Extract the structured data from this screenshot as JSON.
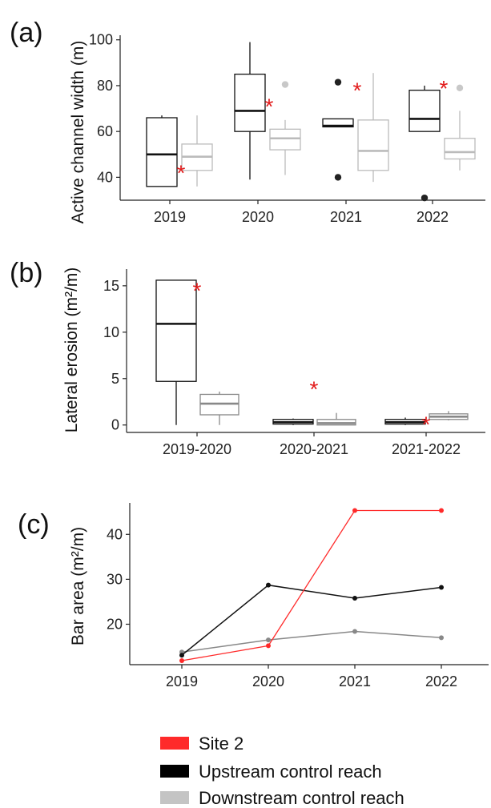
{
  "panels": {
    "a": "(a)",
    "b": "(b)",
    "c": "(c)"
  },
  "colors": {
    "site2": "#ff2a2a",
    "upstream": "#111111",
    "downstream": "#bbbbbb",
    "downstream_line": "#888888",
    "marker": "#e21b1b"
  },
  "chart_data": [
    {
      "type": "box",
      "panel": "(a)",
      "ylabel": "Active channel width (m)",
      "xlabel": "",
      "categories": [
        "2019",
        "2020",
        "2021",
        "2022"
      ],
      "ylim": [
        30,
        102
      ],
      "yticks": [
        40,
        60,
        80,
        100
      ],
      "series": [
        {
          "name": "Upstream control reach",
          "boxes": [
            {
              "whisker_low": 36,
              "q1": 36,
              "median": 50,
              "q3": 66,
              "whisker_high": 67,
              "outliers": []
            },
            {
              "whisker_low": 39,
              "q1": 60,
              "median": 69,
              "q3": 85,
              "whisker_high": 99,
              "outliers": []
            },
            {
              "whisker_low": 62,
              "q1": 62,
              "median": 62.5,
              "q3": 65.5,
              "whisker_high": 65.5,
              "outliers": [
                81.5,
                40
              ]
            },
            {
              "whisker_low": 60,
              "q1": 60,
              "median": 65.5,
              "q3": 78,
              "whisker_high": 80,
              "outliers": [
                31
              ]
            }
          ]
        },
        {
          "name": "Downstream control reach",
          "boxes": [
            {
              "whisker_low": 36,
              "q1": 43,
              "median": 49,
              "q3": 54.5,
              "whisker_high": 67,
              "outliers": []
            },
            {
              "whisker_low": 41,
              "q1": 52,
              "median": 57,
              "q3": 61,
              "whisker_high": 65,
              "outliers": [
                80.5
              ]
            },
            {
              "whisker_low": 38,
              "q1": 43,
              "median": 51.5,
              "q3": 65,
              "whisker_high": 85.5,
              "outliers": []
            },
            {
              "whisker_low": 43,
              "q1": 48,
              "median": 51,
              "q3": 57,
              "whisker_high": 69,
              "outliers": [
                79
              ]
            }
          ]
        }
      ],
      "site2_markers": [
        42,
        71,
        78,
        79
      ]
    },
    {
      "type": "box",
      "panel": "(b)",
      "ylabel": "Lateral erosion (m²/m)",
      "xlabel": "",
      "categories": [
        "2019-2020",
        "2020-2021",
        "2021-2022"
      ],
      "ylim": [
        -0.8,
        16.8
      ],
      "yticks": [
        0,
        5,
        10,
        15
      ],
      "series": [
        {
          "name": "Upstream control reach",
          "boxes": [
            {
              "whisker_low": 0,
              "q1": 4.7,
              "median": 10.9,
              "q3": 15.6,
              "whisker_high": 15.6,
              "outliers": []
            },
            {
              "whisker_low": 0,
              "q1": 0.1,
              "median": 0.3,
              "q3": 0.6,
              "whisker_high": 0.7,
              "outliers": []
            },
            {
              "whisker_low": 0,
              "q1": 0.1,
              "median": 0.3,
              "q3": 0.6,
              "whisker_high": 0.8,
              "outliers": []
            }
          ]
        },
        {
          "name": "Downstream control reach",
          "boxes": [
            {
              "whisker_low": 0,
              "q1": 1.1,
              "median": 2.3,
              "q3": 3.3,
              "whisker_high": 3.6,
              "outliers": []
            },
            {
              "whisker_low": 0,
              "q1": 0.0,
              "median": 0.2,
              "q3": 0.6,
              "whisker_high": 1.3,
              "outliers": []
            },
            {
              "whisker_low": 0.5,
              "q1": 0.6,
              "median": 0.9,
              "q3": 1.2,
              "whisker_high": 1.5,
              "outliers": []
            }
          ]
        }
      ],
      "site2_markers": [
        14.5,
        3.9,
        0.1
      ]
    },
    {
      "type": "line",
      "panel": "(c)",
      "ylabel": "Bar area (m²/m)",
      "xlabel": "",
      "x": [
        "2019",
        "2020",
        "2021",
        "2022"
      ],
      "ylim": [
        11,
        47
      ],
      "yticks": [
        20,
        30,
        40
      ],
      "series": [
        {
          "name": "Site 2",
          "values": [
            11.9,
            15.2,
            45.3,
            45.3
          ]
        },
        {
          "name": "Upstream control reach",
          "values": [
            13.1,
            28.7,
            25.8,
            28.2
          ]
        },
        {
          "name": "Downstream control reach",
          "values": [
            13.8,
            16.5,
            18.4,
            17.0
          ]
        }
      ]
    }
  ],
  "legend": {
    "items": [
      {
        "label": "Site 2",
        "color": "#ff2a2a"
      },
      {
        "label": "Upstream control reach",
        "color": "#000000"
      },
      {
        "label": "Downstream control reach",
        "color": "#c4c4c4"
      }
    ]
  }
}
